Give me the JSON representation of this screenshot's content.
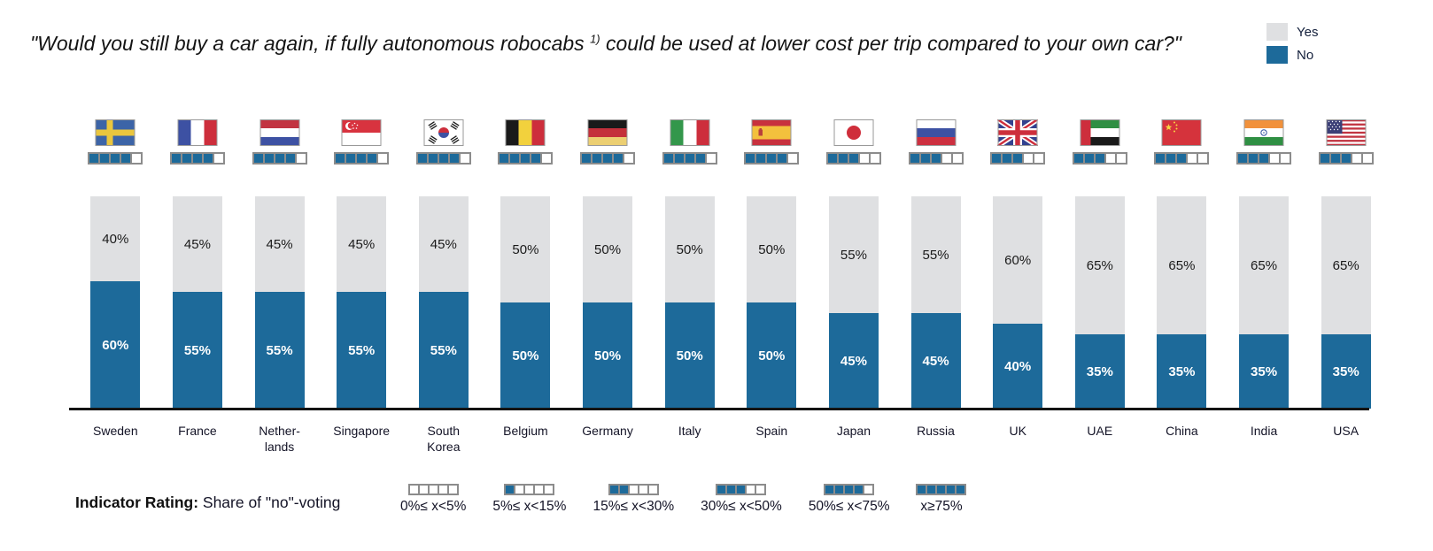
{
  "title": {
    "prefix": "\"Would you still buy a car again, if fully autonomous robocabs ",
    "superscript": "1)",
    "suffix": " could be used at lower cost per trip compared to your own car?\""
  },
  "legend": {
    "yes_label": "Yes",
    "no_label": "No"
  },
  "colors": {
    "no": "#1d6a9a",
    "yes": "#dfe0e2",
    "square_border": "#8c8c8c",
    "axis": "#141414"
  },
  "chart_data": {
    "type": "bar",
    "stacked": true,
    "unit": "%",
    "ylim": [
      0,
      100
    ],
    "legend_position": "top-right",
    "categories": [
      "Sweden",
      "France",
      "Nether-\nlands",
      "Singapore",
      "South\nKorea",
      "Belgium",
      "Germany",
      "Italy",
      "Spain",
      "Japan",
      "Russia",
      "UK",
      "UAE",
      "China",
      "India",
      "USA"
    ],
    "flags": [
      "sweden",
      "france",
      "netherlands",
      "singapore",
      "south-korea",
      "belgium",
      "germany",
      "italy",
      "spain",
      "japan",
      "russia",
      "uk",
      "uae",
      "china",
      "india",
      "usa"
    ],
    "series": [
      {
        "name": "Yes",
        "values": [
          40,
          45,
          45,
          45,
          45,
          50,
          50,
          50,
          50,
          55,
          55,
          60,
          65,
          65,
          65,
          65
        ]
      },
      {
        "name": "No",
        "values": [
          60,
          55,
          55,
          55,
          55,
          50,
          50,
          50,
          50,
          45,
          45,
          40,
          35,
          35,
          35,
          35
        ]
      }
    ],
    "indicator_ratings": [
      4,
      4,
      4,
      4,
      4,
      4,
      4,
      4,
      4,
      3,
      3,
      3,
      3,
      3,
      3,
      3
    ],
    "indicator_scale_max": 5
  },
  "indicator_legend": {
    "label_bold": "Indicator Rating:",
    "label_rest": " Share of \"no\"-voting",
    "bins": [
      {
        "filled": 0,
        "label": "0%≤ x<5%"
      },
      {
        "filled": 1,
        "label": "5%≤ x<15%"
      },
      {
        "filled": 2,
        "label": "15%≤ x<30%"
      },
      {
        "filled": 3,
        "label": "30%≤ x<50%"
      },
      {
        "filled": 4,
        "label": "50%≤ x<75%"
      },
      {
        "filled": 5,
        "label": "x≥75%"
      }
    ]
  }
}
